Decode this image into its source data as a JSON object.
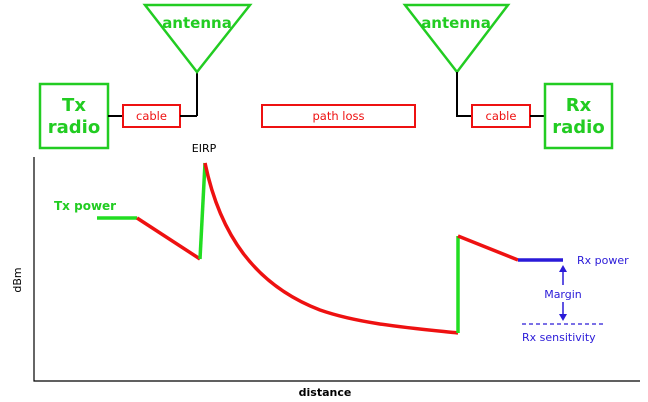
{
  "top": {
    "tx_radio": [
      "Tx",
      "radio"
    ],
    "rx_radio": [
      "Rx",
      "radio"
    ],
    "antenna_left": "antenna",
    "antenna_right": "antenna",
    "cable_left": "cable",
    "cable_right": "cable",
    "path_loss": "path loss"
  },
  "graph": {
    "eirp_label": "EIRP",
    "tx_power_label": "Tx power",
    "rx_power_label": "Rx power",
    "margin_label": "Margin",
    "rx_sensitivity_label": "Rx sensitivity",
    "x_axis_label": "distance",
    "y_axis_label": "dBm"
  },
  "colors": {
    "green": "#22cc22",
    "red": "#ee1111",
    "blue": "#2a1ad8",
    "black": "#000000"
  }
}
